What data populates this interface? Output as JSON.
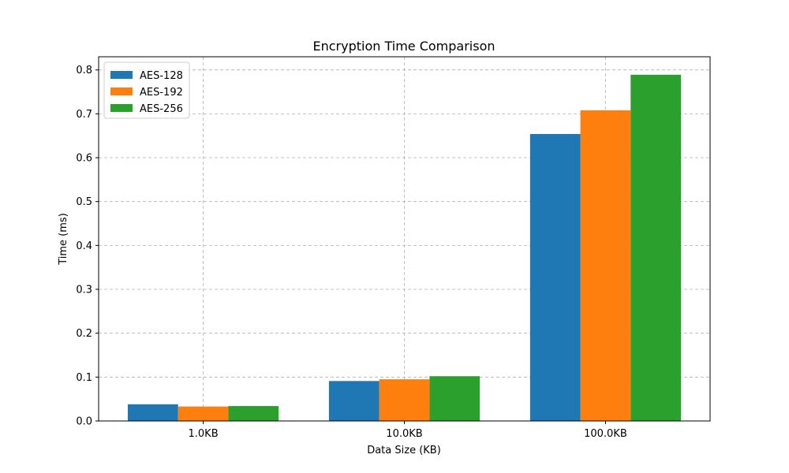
{
  "chart_data": {
    "type": "bar",
    "title": "Encryption Time Comparison",
    "xlabel": "Data Size (KB)",
    "ylabel": "Time (ms)",
    "categories": [
      "1.0KB",
      "10.0KB",
      "100.0KB"
    ],
    "series": [
      {
        "name": "AES-128",
        "values": [
          0.038,
          0.091,
          0.654
        ]
      },
      {
        "name": "AES-192",
        "values": [
          0.033,
          0.095,
          0.708
        ]
      },
      {
        "name": "AES-256",
        "values": [
          0.034,
          0.102,
          0.789
        ]
      }
    ],
    "ylim": [
      0,
      0.83
    ],
    "yticks": [
      0.0,
      0.1,
      0.2,
      0.3,
      0.4,
      0.5,
      0.6,
      0.7,
      0.8
    ],
    "ytick_labels": [
      "0.0",
      "0.1",
      "0.2",
      "0.3",
      "0.4",
      "0.5",
      "0.6",
      "0.7",
      "0.8"
    ],
    "grid": true,
    "legend_position": "top-left",
    "colors": [
      "#1f77b4",
      "#ff7f0e",
      "#2ca02c"
    ]
  }
}
